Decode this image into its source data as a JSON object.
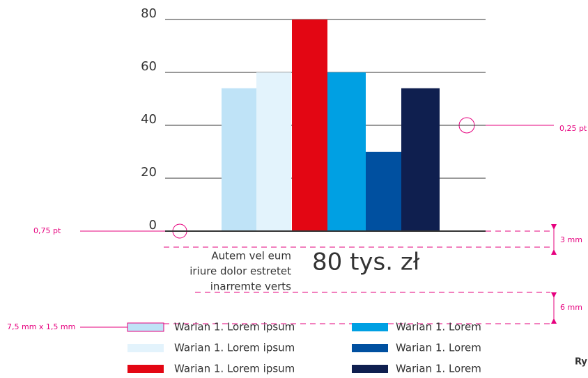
{
  "chart_data": {
    "type": "bar",
    "ylim": [
      0,
      80
    ],
    "yticks": [
      0,
      20,
      40,
      60,
      80
    ],
    "grid": true,
    "series": [
      {
        "name": "Warian 1. Lorem ipsum",
        "color": "#bfe3f7",
        "values": [
          54
        ]
      },
      {
        "name": "Warian 1. Lorem ipsum",
        "color": "#e3f3fc",
        "values": [
          60
        ]
      },
      {
        "name": "Warian 1. Lorem ipsum",
        "color": "#e30613",
        "values": [
          80
        ]
      },
      {
        "name": "Warian 1. Lorem",
        "color": "#00a0e3",
        "values": [
          60
        ]
      },
      {
        "name": "Warian 1. Lorem",
        "color": "#0050a0",
        "values": [
          30
        ]
      },
      {
        "name": "Warian 1. Lorem",
        "color": "#0f1f4f",
        "values": [
          54
        ]
      }
    ],
    "annotations": {
      "line_main": "0,75 pt",
      "line_grid": "0,25 pt",
      "gap_top": "3 mm",
      "gap_legend": "6 mm",
      "swatch": "7,5 mm x 1,5 mm",
      "axis_note": [
        "Autem vel eum",
        "iriure dolor estretet",
        "inarremte verts"
      ],
      "big_label": "80 tys. zł",
      "caption": "Ry"
    }
  }
}
